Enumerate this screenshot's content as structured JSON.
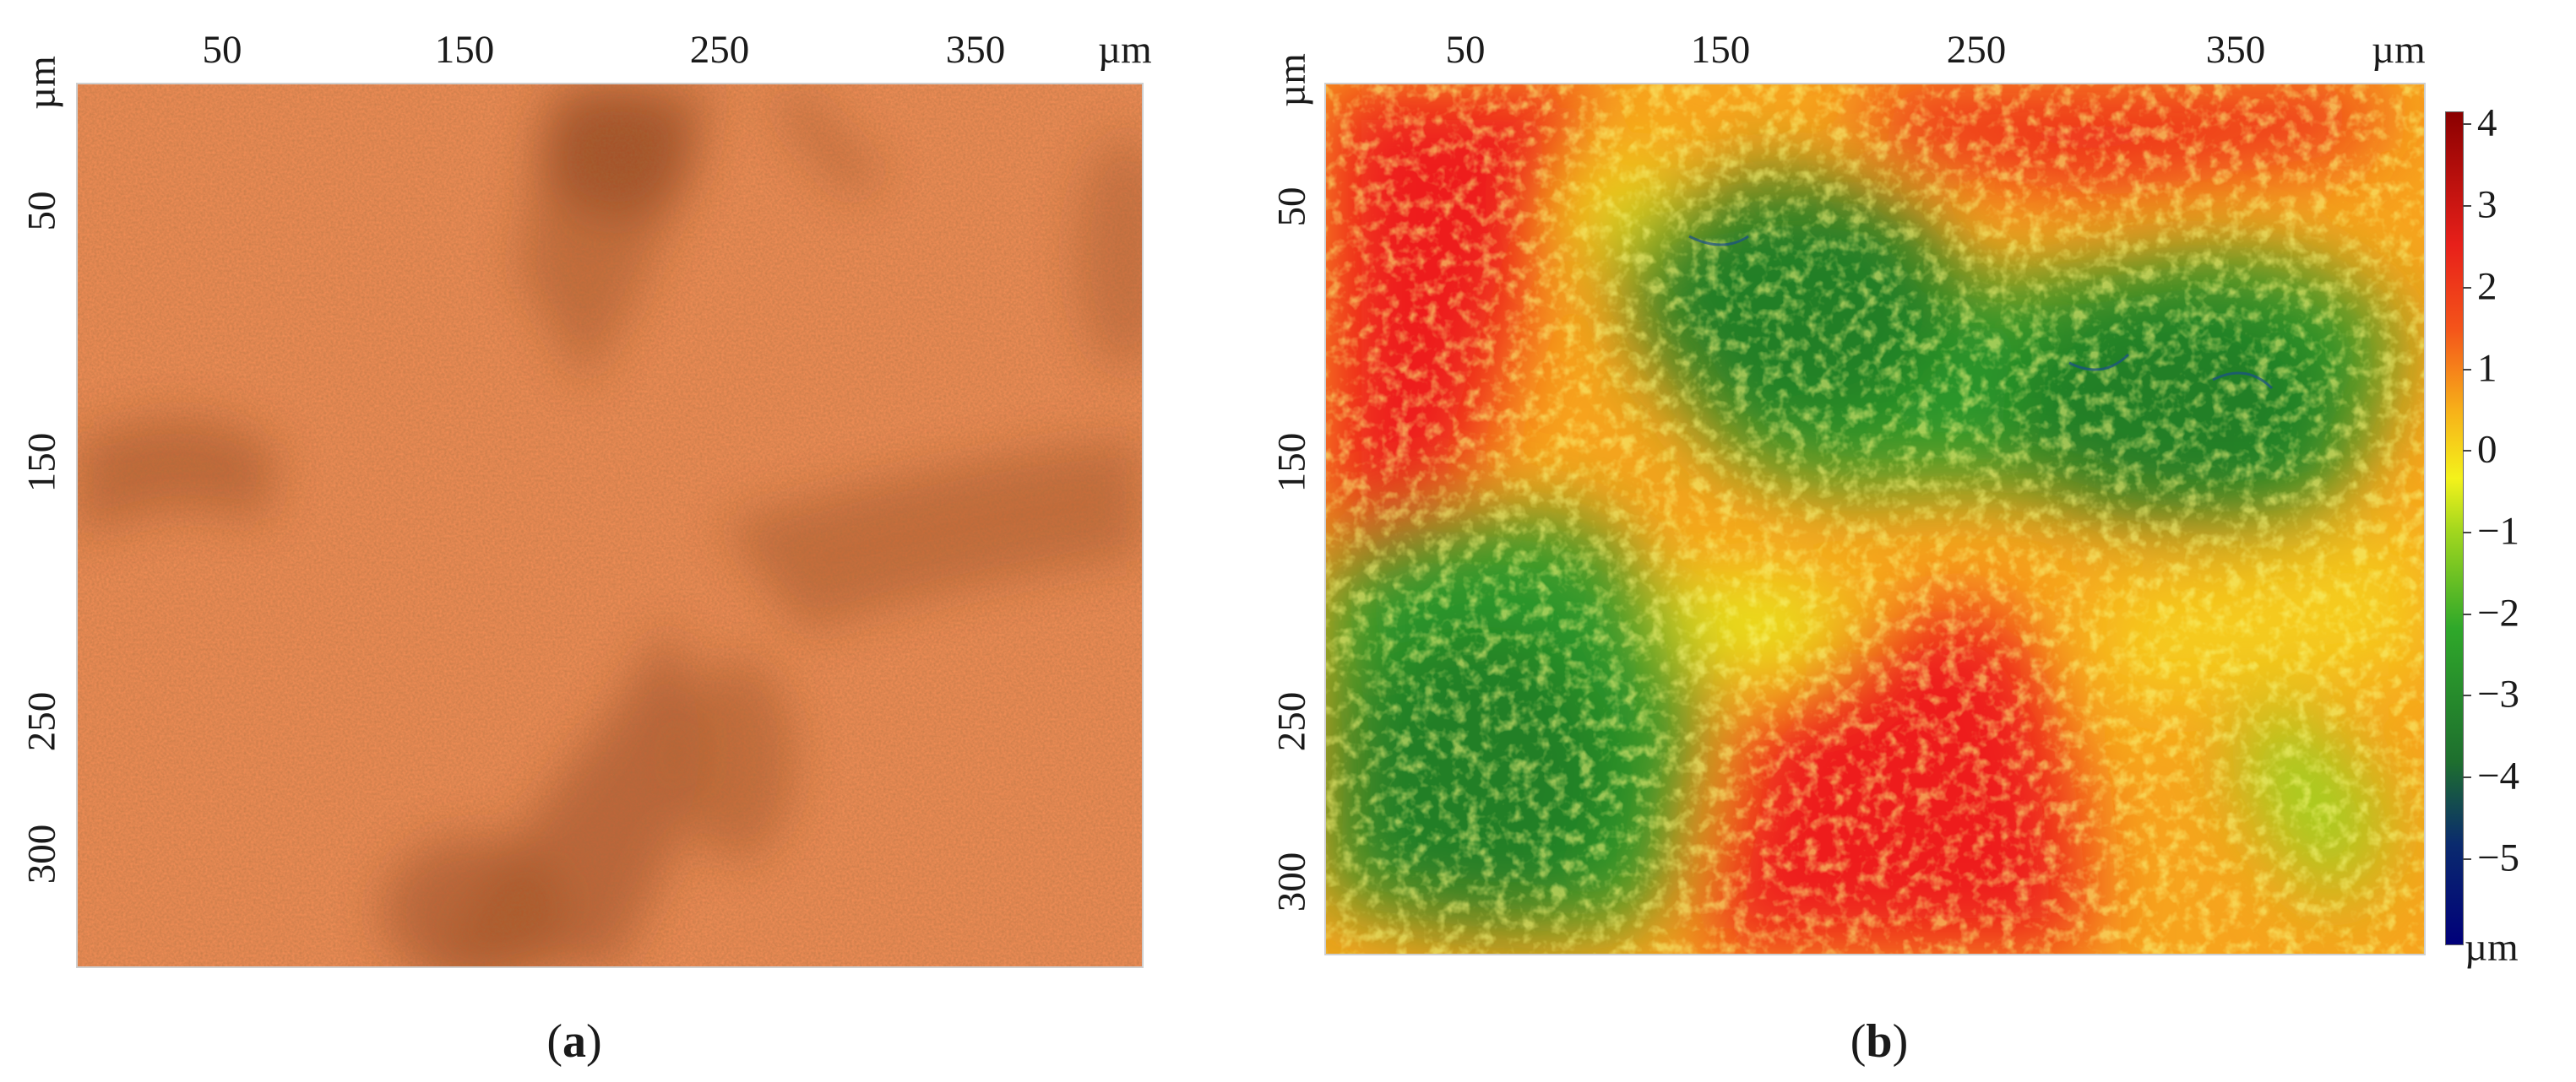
{
  "panel_a": {
    "x_ticks": [
      "50",
      "150",
      "250",
      "350"
    ],
    "x_unit": "µm",
    "y_ticks": [
      "50",
      "150",
      "250",
      "300"
    ],
    "y_unit": "µm",
    "image_desc": "optical-micrograph",
    "caption_open": "(",
    "caption_letter": "a",
    "caption_close": ")"
  },
  "panel_b": {
    "x_ticks": [
      "50",
      "150",
      "250",
      "350"
    ],
    "x_unit": "µm",
    "y_ticks": [
      "50",
      "150",
      "250",
      "300"
    ],
    "y_unit": "µm",
    "image_desc": "height-map",
    "caption_open": "(",
    "caption_letter": "b",
    "caption_close": ")"
  },
  "colorbar": {
    "ticks": [
      "4",
      "3",
      "2",
      "1",
      "0",
      "−1",
      "−2",
      "−3",
      "−4",
      "−5"
    ],
    "unit": "µm",
    "range": [
      -6,
      4
    ],
    "colors": [
      "#00007a",
      "#1e6f2e",
      "#2fa82a",
      "#7fd01f",
      "#f4f21b",
      "#f7b219",
      "#f4541a",
      "#e8201a",
      "#8b0000"
    ]
  },
  "chart_data": {
    "type": "heatmap",
    "title": "",
    "xlabel": "µm",
    "ylabel": "µm",
    "xlim": [
      0,
      410
    ],
    "ylim": [
      0,
      340
    ],
    "x_ticks": [
      50,
      150,
      250,
      350
    ],
    "y_ticks": [
      50,
      150,
      250,
      300
    ],
    "colorbar_label": "µm",
    "colorbar_range": [
      -6,
      4
    ],
    "colorbar_ticks": [
      4,
      3,
      2,
      1,
      0,
      -1,
      -2,
      -3,
      -4,
      -5
    ]
  }
}
